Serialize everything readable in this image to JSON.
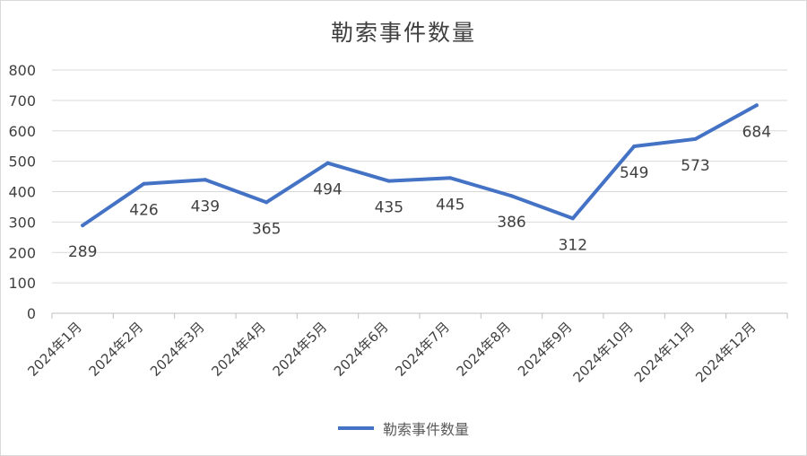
{
  "chart_data": {
    "type": "line",
    "title": "勒索事件数量",
    "xlabel": "",
    "ylabel": "",
    "categories": [
      "2024年1月",
      "2024年2月",
      "2024年3月",
      "2024年4月",
      "2024年5月",
      "2024年6月",
      "2024年7月",
      "2024年8月",
      "2024年9月",
      "2024年10月",
      "2024年11月",
      "2024年12月"
    ],
    "series": [
      {
        "name": "勒索事件数量",
        "values": [
          289,
          426,
          439,
          365,
          494,
          435,
          445,
          386,
          312,
          549,
          573,
          684
        ]
      }
    ],
    "ylim": [
      0,
      800
    ],
    "yticks": [
      0,
      100,
      200,
      300,
      400,
      500,
      600,
      700,
      800
    ],
    "grid": true,
    "data_labels": true,
    "legend": "bottom",
    "colors": {
      "series": "#4472c4",
      "grid": "#d9d9d9",
      "text": "#404040"
    }
  }
}
